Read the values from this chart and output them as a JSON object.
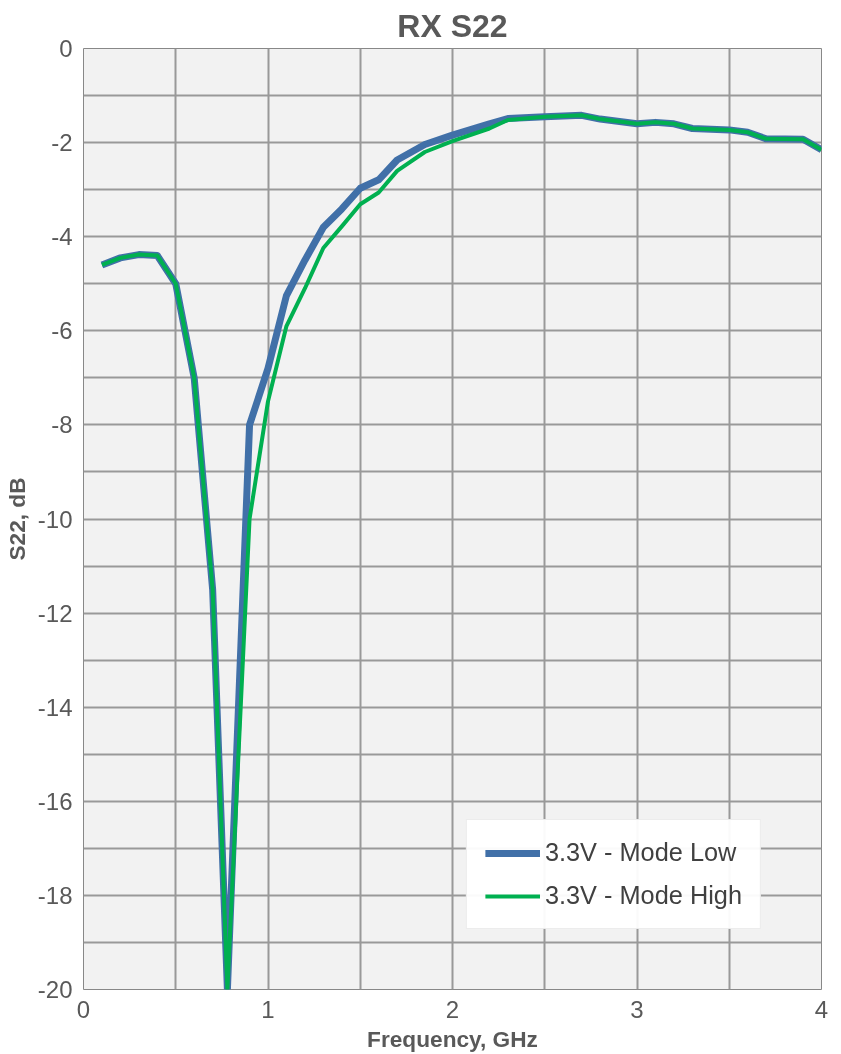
{
  "chart_data": {
    "type": "line",
    "title": "RX S22",
    "xlabel": "Frequency, GHz",
    "ylabel": "S22, dB",
    "xlim": [
      0,
      4
    ],
    "ylim": [
      -20,
      0
    ],
    "xticks": [
      0,
      {
        "value": 0.5,
        "label": null
      },
      1,
      {
        "value": 1.5,
        "label": null
      },
      2,
      {
        "value": 2.5,
        "label": null
      },
      3,
      {
        "value": 3.5,
        "label": null
      },
      4
    ],
    "yticks": [
      -20,
      {
        "value": -19,
        "label": null
      },
      -18,
      {
        "value": -17,
        "label": null
      },
      -16,
      {
        "value": -15,
        "label": null
      },
      -14,
      {
        "value": -13,
        "label": null
      },
      -12,
      {
        "value": -11,
        "label": null
      },
      -10,
      {
        "value": -9,
        "label": null
      },
      -8,
      {
        "value": -7,
        "label": null
      },
      -6,
      {
        "value": -5,
        "label": null
      },
      -4,
      {
        "value": -3,
        "label": null
      },
      -2,
      {
        "value": -1,
        "label": null
      },
      0
    ],
    "grid": true,
    "legend": "bottom right",
    "marker": "none",
    "line_style": "solid",
    "series": [
      {
        "name": "3.3V - Mode Low",
        "color": "#4170a8",
        "x": [
          0.1,
          0.2,
          0.3,
          0.4,
          0.5,
          0.6,
          0.7,
          0.78,
          0.9,
          1.0,
          1.1,
          1.2,
          1.3,
          1.4,
          1.5,
          1.6,
          1.7,
          1.85,
          2.0,
          2.2,
          2.3,
          2.5,
          2.7,
          2.8,
          3.0,
          3.1,
          3.2,
          3.3,
          3.5,
          3.6,
          3.7,
          3.9,
          4.0
        ],
        "values": [
          -4.6,
          -4.45,
          -4.38,
          -4.4,
          -5.0,
          -7.0,
          -11.5,
          -20,
          -8.0,
          -6.8,
          -5.25,
          -4.5,
          -3.8,
          -3.41,
          -2.97,
          -2.79,
          -2.37,
          -2.04,
          -1.84,
          -1.6,
          -1.49,
          -1.45,
          -1.42,
          -1.5,
          -1.6,
          -1.57,
          -1.6,
          -1.7,
          -1.73,
          -1.78,
          -1.92,
          -1.93,
          -2.15
        ]
      },
      {
        "name": "3.3V - Mode High",
        "color": "#00b050",
        "x": [
          0.1,
          0.2,
          0.3,
          0.4,
          0.5,
          0.6,
          0.7,
          0.78,
          0.9,
          1.0,
          1.1,
          1.2,
          1.3,
          1.4,
          1.5,
          1.6,
          1.7,
          1.85,
          2.0,
          2.2,
          2.3,
          2.5,
          2.7,
          2.8,
          3.0,
          3.1,
          3.2,
          3.3,
          3.5,
          3.6,
          3.7,
          3.9,
          4.0
        ],
        "values": [
          -4.6,
          -4.45,
          -4.38,
          -4.4,
          -5.0,
          -7.0,
          -11.5,
          -20,
          -10.0,
          -7.5,
          -5.9,
          -5.1,
          -4.24,
          -3.78,
          -3.31,
          -3.06,
          -2.6,
          -2.2,
          -1.97,
          -1.7,
          -1.52,
          -1.45,
          -1.42,
          -1.5,
          -1.6,
          -1.57,
          -1.6,
          -1.7,
          -1.73,
          -1.78,
          -1.92,
          -1.93,
          -2.15
        ]
      }
    ]
  }
}
